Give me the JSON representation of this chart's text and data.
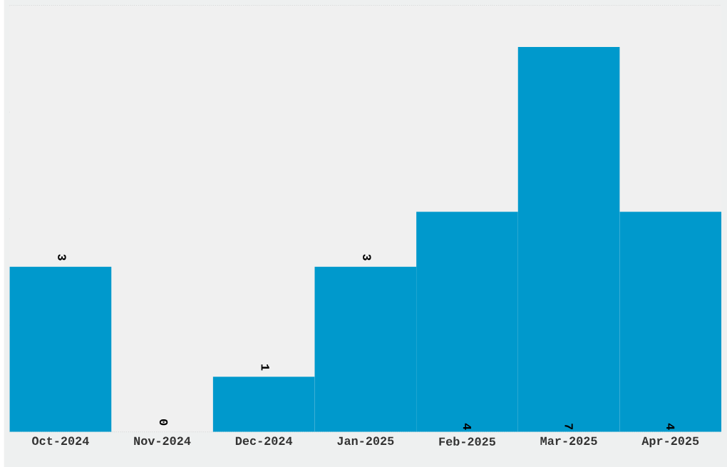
{
  "chart_data": {
    "type": "bar",
    "categories": [
      "Oct-2024",
      "Nov-2024",
      "Dec-2024",
      "Jan-2025",
      "Feb-2025",
      "Mar-2025",
      "Apr-2025"
    ],
    "values": [
      3,
      0,
      1,
      3,
      4,
      7,
      4
    ],
    "color": "#0099cc",
    "ylim": [
      0,
      7.75
    ],
    "yticks": [
      {
        "value": 0,
        "label": null
      },
      {
        "value": 1.9375,
        "label": null
      },
      {
        "value": 3.875,
        "label": null
      },
      {
        "value": 5.8125,
        "label": null
      },
      {
        "value": 7.75,
        "label": null
      }
    ],
    "tick_labels": "x",
    "grid": true,
    "data_labels": true
  }
}
